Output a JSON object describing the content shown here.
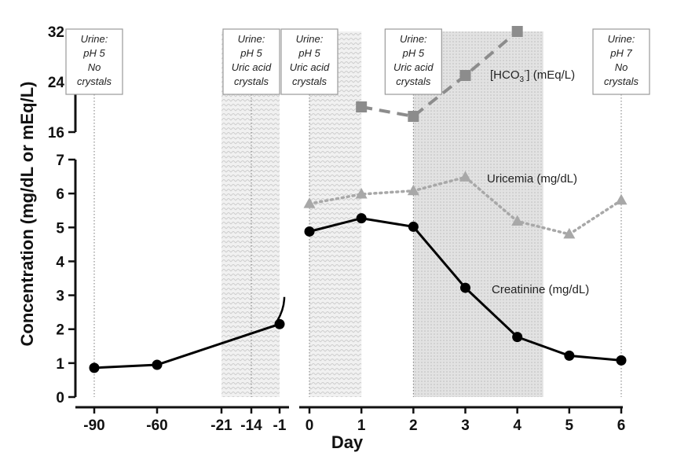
{
  "chart_data": {
    "type": "line",
    "xlabel": "Day",
    "ylabel": "Concentration (mg/dL or mEq/L)",
    "x_tick_labels": [
      "-90",
      "-60",
      "-21",
      "-14",
      "-1",
      "0",
      "1",
      "2",
      "3",
      "4",
      "5",
      "6"
    ],
    "y_lower_ticks": [
      "0",
      "1",
      "2",
      "3",
      "4",
      "5",
      "6",
      "7"
    ],
    "y_upper_ticks": [
      "16",
      "24",
      "32"
    ],
    "ylim_lower": [
      0,
      7
    ],
    "ylim_upper": [
      16,
      32
    ],
    "series": [
      {
        "name": "Creatinine (mg/dL)",
        "color": "#000000",
        "marker": "circle",
        "line": "solid",
        "segments": [
          [
            {
              "x": -90,
              "y": 0.86
            },
            {
              "x": -60,
              "y": 0.95
            },
            {
              "x": -1,
              "y": 2.15
            }
          ],
          [
            {
              "x": 0,
              "y": 4.88
            },
            {
              "x": 1,
              "y": 5.27
            },
            {
              "x": 2,
              "y": 5.02
            },
            {
              "x": 3,
              "y": 3.22
            },
            {
              "x": 4,
              "y": 1.77
            },
            {
              "x": 5,
              "y": 1.22
            },
            {
              "x": 6,
              "y": 1.08
            }
          ]
        ]
      },
      {
        "name": "Uricemia (mg/dL)",
        "color": "#a8a8a8",
        "marker": "triangle",
        "line": "dotted",
        "segments": [
          [
            {
              "x": 0,
              "y": 5.7
            },
            {
              "x": 1,
              "y": 5.98
            },
            {
              "x": 2,
              "y": 6.08
            },
            {
              "x": 3,
              "y": 6.48
            },
            {
              "x": 4,
              "y": 5.18
            },
            {
              "x": 5,
              "y": 4.8
            },
            {
              "x": 6,
              "y": 5.8
            }
          ]
        ]
      },
      {
        "name_prefix": "[HCO",
        "name_sub": "3",
        "name_sup": "-",
        "name_suffix": "] (mEq/L)",
        "color": "#8c8c8c",
        "marker": "square",
        "line": "dashed",
        "axis": "upper",
        "segments": [
          [
            {
              "x": 1,
              "y": 20
            },
            {
              "x": 2,
              "y": 18.5
            },
            {
              "x": 3,
              "y": 25
            },
            {
              "x": 4,
              "y": 32
            }
          ]
        ]
      }
    ],
    "shaded_periods": [
      {
        "from": -21,
        "to": -1
      },
      {
        "from": 0,
        "to": 1
      },
      {
        "from": 2,
        "to": 4.5
      }
    ],
    "urine_notes": [
      {
        "x": -90,
        "lines": [
          "Urine:",
          "pH 5",
          "No",
          "crystals"
        ]
      },
      {
        "x": -14,
        "lines": [
          "Urine:",
          "pH 5",
          "Uric acid",
          "crystals"
        ]
      },
      {
        "x": 0,
        "lines": [
          "Urine:",
          "pH 5",
          "Uric acid",
          "crystals"
        ]
      },
      {
        "x": 2,
        "lines": [
          "Urine:",
          "pH 5",
          "Uric acid",
          "crystals"
        ]
      },
      {
        "x": 6,
        "lines": [
          "Urine:",
          "pH 7",
          "No",
          "crystals"
        ]
      }
    ]
  }
}
